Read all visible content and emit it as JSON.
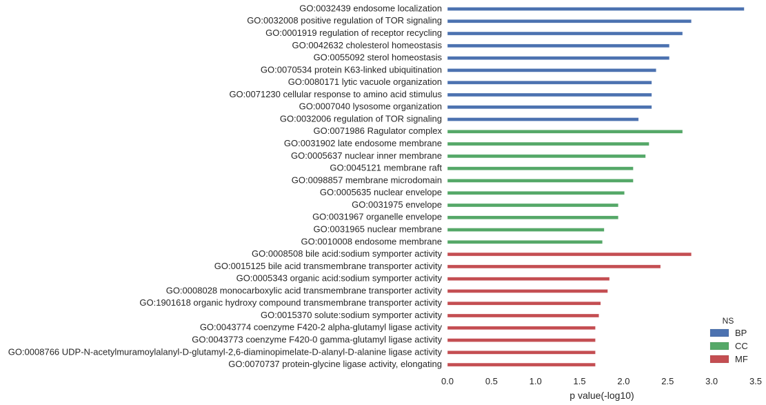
{
  "chart_data": {
    "type": "bar",
    "orientation": "horizontal",
    "title": "",
    "xlabel": "p value(-log10)",
    "ylabel": "",
    "xlim": [
      0,
      3.5
    ],
    "xticks": [
      "0.0",
      "0.5",
      "1.0",
      "1.5",
      "2.0",
      "2.5",
      "3.0",
      "3.5"
    ],
    "grid": false,
    "legend": {
      "title": "NS",
      "placement": "bottom-right",
      "entries": [
        "BP",
        "CC",
        "MF"
      ]
    },
    "colors": {
      "BP": "#4c72b0",
      "CC": "#55a868",
      "MF": "#c44e52"
    },
    "bars": [
      {
        "label": "GO:0032439 endosome localization",
        "ns": "BP",
        "value": 3.37
      },
      {
        "label": "GO:0032008 positive regulation of TOR signaling",
        "ns": "BP",
        "value": 2.77
      },
      {
        "label": "GO:0001919 regulation of receptor recycling",
        "ns": "BP",
        "value": 2.67
      },
      {
        "label": "GO:0042632 cholesterol homeostasis",
        "ns": "BP",
        "value": 2.52
      },
      {
        "label": "GO:0055092 sterol homeostasis",
        "ns": "BP",
        "value": 2.52
      },
      {
        "label": "GO:0070534 protein K63-linked ubiquitination",
        "ns": "BP",
        "value": 2.37
      },
      {
        "label": "GO:0080171 lytic vacuole organization",
        "ns": "BP",
        "value": 2.32
      },
      {
        "label": "GO:0071230 cellular response to amino acid stimulus",
        "ns": "BP",
        "value": 2.32
      },
      {
        "label": "GO:0007040 lysosome organization",
        "ns": "BP",
        "value": 2.32
      },
      {
        "label": "GO:0032006 regulation of TOR signaling",
        "ns": "BP",
        "value": 2.17
      },
      {
        "label": "GO:0071986 Ragulator complex",
        "ns": "CC",
        "value": 2.67
      },
      {
        "label": "GO:0031902 late endosome membrane",
        "ns": "CC",
        "value": 2.29
      },
      {
        "label": "GO:0005637 nuclear inner membrane",
        "ns": "CC",
        "value": 2.25
      },
      {
        "label": "GO:0045121 membrane raft",
        "ns": "CC",
        "value": 2.11
      },
      {
        "label": "GO:0098857 membrane microdomain",
        "ns": "CC",
        "value": 2.11
      },
      {
        "label": "GO:0005635 nuclear envelope",
        "ns": "CC",
        "value": 2.01
      },
      {
        "label": "GO:0031975 envelope",
        "ns": "CC",
        "value": 1.94
      },
      {
        "label": "GO:0031967 organelle envelope",
        "ns": "CC",
        "value": 1.94
      },
      {
        "label": "GO:0031965 nuclear membrane",
        "ns": "CC",
        "value": 1.78
      },
      {
        "label": "GO:0010008 endosome membrane",
        "ns": "CC",
        "value": 1.76
      },
      {
        "label": "GO:0008508 bile acid:sodium symporter activity",
        "ns": "MF",
        "value": 2.77
      },
      {
        "label": "GO:0015125 bile acid transmembrane transporter activity",
        "ns": "MF",
        "value": 2.42
      },
      {
        "label": "GO:0005343 organic acid:sodium symporter activity",
        "ns": "MF",
        "value": 1.84
      },
      {
        "label": "GO:0008028 monocarboxylic acid transmembrane transporter activity",
        "ns": "MF",
        "value": 1.82
      },
      {
        "label": "GO:1901618 organic hydroxy compound transmembrane transporter activity",
        "ns": "MF",
        "value": 1.74
      },
      {
        "label": "GO:0015370 solute:sodium symporter activity",
        "ns": "MF",
        "value": 1.72
      },
      {
        "label": "GO:0043774 coenzyme F420-2 alpha-glutamyl ligase activity",
        "ns": "MF",
        "value": 1.68
      },
      {
        "label": "GO:0043773 coenzyme F420-0 gamma-glutamyl ligase activity",
        "ns": "MF",
        "value": 1.68
      },
      {
        "label": "GO:0008766 UDP-N-acetylmuramoylalanyl-D-glutamyl-2,6-diaminopimelate-D-alanyl-D-alanine ligase activity",
        "ns": "MF",
        "value": 1.68
      },
      {
        "label": "GO:0070737 protein-glycine ligase activity, elongating",
        "ns": "MF",
        "value": 1.68
      }
    ]
  }
}
